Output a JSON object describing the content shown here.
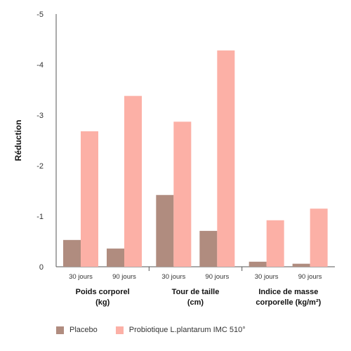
{
  "chart_data": {
    "type": "bar",
    "ylabel": "Réduction",
    "ylim": [
      0,
      -5
    ],
    "yticks": [
      "-5",
      "-4",
      "-3",
      "-2",
      "-1",
      "0"
    ],
    "groups": [
      {
        "label_lines": [
          "Poids corporel",
          "(kg)"
        ],
        "subcategories": [
          "30 jours",
          "90 jours"
        ]
      },
      {
        "label_lines": [
          "Tour de taille",
          "(cm)"
        ],
        "subcategories": [
          "30 jours",
          "90 jours"
        ]
      },
      {
        "label_lines": [
          "Indice de masse",
          "corporelle (kg/m²)"
        ],
        "subcategories": [
          "30 jours",
          "90 jours"
        ]
      }
    ],
    "series": [
      {
        "name": "Placebo",
        "color": "#b08c7f",
        "values": [
          -0.53,
          -0.36,
          -1.42,
          -0.71,
          -0.1,
          -0.06
        ]
      },
      {
        "name": "Probiotique L.plantarum IMC 510°",
        "color": "#fcb0a6",
        "values": [
          -2.68,
          -3.38,
          -2.87,
          -4.28,
          -0.92,
          -1.15
        ]
      }
    ],
    "grid": false,
    "legend_position": "bottom-left"
  }
}
